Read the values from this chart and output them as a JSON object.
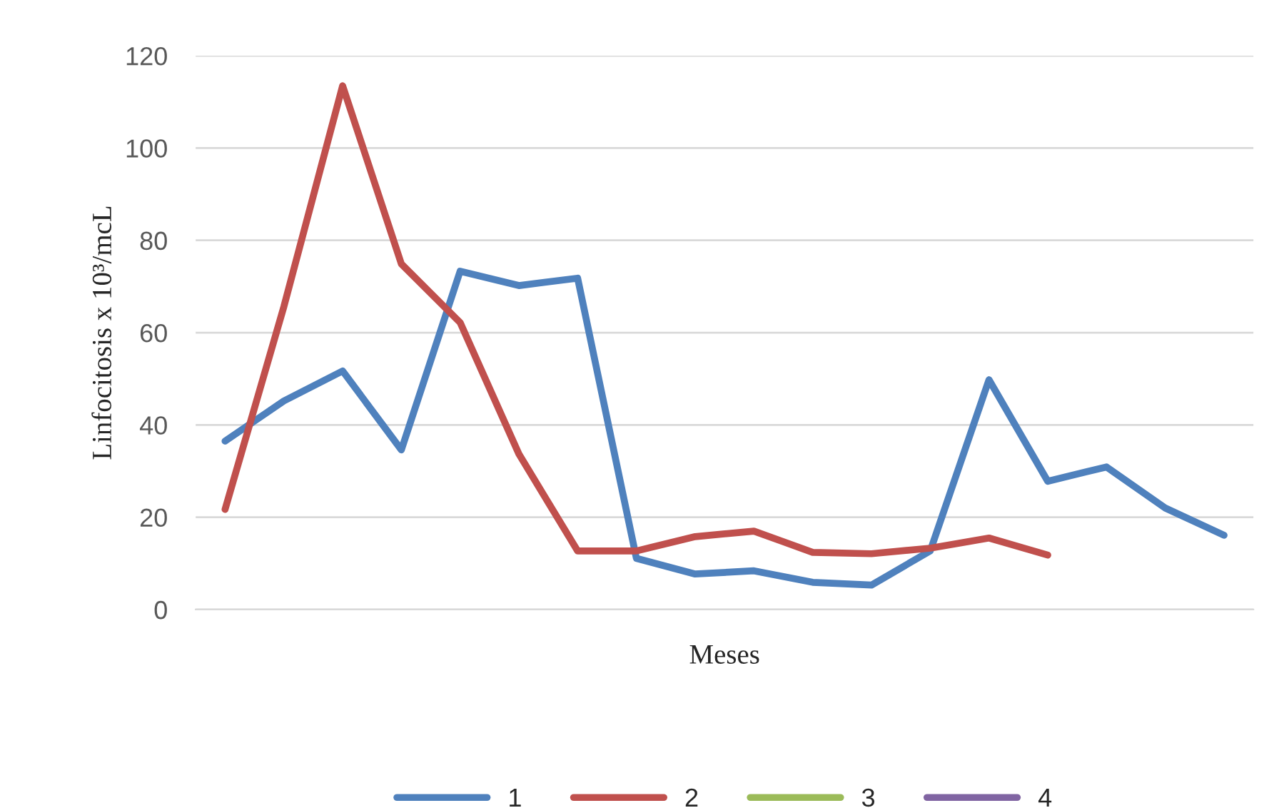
{
  "chart_data": {
    "type": "line",
    "xlabel": "Meses",
    "ylabel": "Linfocitosis x 10³/mcL",
    "categories": [
      null,
      null,
      null,
      null,
      null,
      null,
      null,
      null,
      null,
      null,
      null,
      null,
      null,
      null,
      null,
      null,
      null,
      null
    ],
    "series": [
      {
        "name": "1",
        "color": "#4f81bd",
        "values": [
          36.5,
          45.2,
          51.7,
          34.6,
          73.3,
          70.2,
          71.8,
          11.1,
          7.7,
          8.4,
          5.9,
          5.3,
          12.7,
          49.8,
          27.8,
          30.9,
          22.0,
          16.1
        ]
      },
      {
        "name": "2",
        "color": "#c0504d",
        "values": [
          21.7,
          65.6,
          113.5,
          74.9,
          62.2,
          33.7,
          12.7,
          12.7,
          15.8,
          17.0,
          12.4,
          12.1,
          13.3,
          15.5,
          11.8,
          null,
          null,
          null
        ]
      },
      {
        "name": "3",
        "color": "#9bbb59",
        "values": [
          null,
          null,
          null,
          null,
          null,
          null,
          null,
          null,
          null,
          null,
          null,
          null,
          null,
          null,
          null,
          null,
          null,
          null
        ]
      },
      {
        "name": "4",
        "color": "#8064a2",
        "values": [
          null,
          null,
          null,
          null,
          null,
          null,
          null,
          null,
          null,
          null,
          null,
          null,
          null,
          null,
          null,
          null,
          null,
          null
        ]
      }
    ],
    "ylim": [
      0,
      120
    ],
    "yticks": [
      0,
      20,
      40,
      60,
      80,
      100,
      120
    ],
    "grid": "y",
    "legend": "bottom",
    "marker": "none",
    "line_style": "solid"
  }
}
